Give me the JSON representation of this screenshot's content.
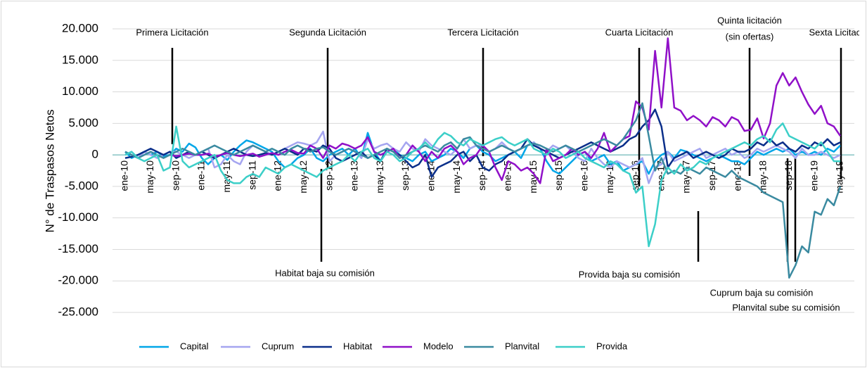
{
  "chart_data": {
    "type": "line",
    "y_label": "N° de Traspasos Netos",
    "ylim": [
      -25000,
      20000
    ],
    "yticks": [
      {
        "value": 20000,
        "label": "20.000"
      },
      {
        "value": 15000,
        "label": "15.000"
      },
      {
        "value": 10000,
        "label": "10.000"
      },
      {
        "value": 5000,
        "label": "5.000"
      },
      0,
      {
        "value": -5000,
        "label": "-5.000"
      },
      {
        "value": -10000,
        "label": "-10.000"
      },
      {
        "value": -15000,
        "label": "-15.000"
      },
      {
        "value": -20000,
        "label": "-20.000"
      },
      {
        "value": -25000,
        "label": "-25.000"
      }
    ],
    "grid": true,
    "legend": "bottom",
    "annotations": [
      "Primera Licitación",
      "Segunda Licitación",
      "Tercera Licitación",
      "Cuarta Licitación",
      "Quinta licitación",
      "(sin ofertas)",
      "Sexta Licitación"
    ],
    "annotations_bottom": [
      "Habitat baja su comisión",
      "Provida baja su comisión",
      "Cuprum baja su comisión",
      "Planvital sube su comisión"
    ],
    "categories": [
      "ene-10",
      null,
      null,
      null,
      "may-10",
      null,
      null,
      null,
      "sep-10",
      null,
      null,
      null,
      "ene-11",
      null,
      null,
      null,
      "may-11",
      null,
      null,
      null,
      "sep-11",
      null,
      null,
      null,
      "ene-12",
      null,
      null,
      null,
      "may-12",
      null,
      null,
      null,
      "sep-12",
      null,
      null,
      null,
      "ene-13",
      null,
      null,
      null,
      "may-13",
      null,
      null,
      null,
      "sep-13",
      null,
      null,
      null,
      "ene-14",
      null,
      null,
      null,
      "may-14",
      null,
      null,
      null,
      "sep-14",
      null,
      null,
      null,
      "ene-15",
      null,
      null,
      null,
      "may-15",
      null,
      null,
      null,
      "sep-15",
      null,
      null,
      null,
      "ene-16",
      null,
      null,
      null,
      "may-16",
      null,
      null,
      null,
      "sep-16",
      null,
      null,
      null,
      "ene-17",
      null,
      null,
      null,
      "may-17",
      null,
      null,
      null,
      "sep-17",
      null,
      null,
      null,
      "ene-18",
      null,
      null,
      null,
      "may-18",
      null,
      null,
      null,
      "sep-18",
      null,
      null,
      null,
      "ene-19",
      null,
      null,
      null,
      "may-19"
    ],
    "series": [
      {
        "name": "Capital",
        "color": "#00A6E8",
        "values": [
          500,
          -500,
          0,
          500,
          0,
          500,
          -200,
          0,
          1000,
          500,
          1800,
          1200,
          -500,
          -1500,
          -500,
          0,
          -800,
          500,
          1500,
          2300,
          2000,
          1500,
          1000,
          500,
          -1000,
          -2000,
          -1500,
          -500,
          0,
          1000,
          -500,
          -1000,
          0,
          500,
          1000,
          0,
          1000,
          -500,
          3500,
          500,
          -1000,
          500,
          1000,
          0,
          -500,
          -1000,
          0,
          500,
          -1000,
          -500,
          0,
          1000,
          500,
          -500,
          1000,
          1500,
          500,
          0,
          -1000,
          -500,
          0,
          500,
          -500,
          1500,
          2000,
          1000,
          -1000,
          -2500,
          -3000,
          -2000,
          -1000,
          0,
          500,
          -1000,
          -500,
          0,
          -1500,
          -1000,
          -2500,
          -2000,
          -1500,
          -1000,
          -3000,
          -1000,
          0,
          500,
          -500,
          800,
          500,
          0,
          -500,
          -1000,
          -500,
          0,
          -500,
          -1000,
          -1000,
          -1500,
          -500,
          500,
          0,
          500,
          1000,
          500,
          1000,
          0,
          500,
          0,
          500,
          0,
          1000,
          500,
          1500
        ]
      },
      {
        "name": "Cuprum",
        "color": "#A5A5F0",
        "values": [
          0,
          500,
          -500,
          500,
          0,
          -500,
          0,
          500,
          500,
          0,
          -500,
          0,
          500,
          1000,
          -2000,
          -1500,
          0,
          -1000,
          -1500,
          500,
          1500,
          1000,
          500,
          0,
          500,
          1000,
          1500,
          2000,
          1800,
          1500,
          2000,
          3700,
          -1000,
          0,
          500,
          1000,
          500,
          -500,
          2500,
          1000,
          1500,
          1800,
          1000,
          500,
          2000,
          1000,
          500,
          2500,
          1500,
          1000,
          500,
          0,
          1000,
          2500,
          1000,
          1500,
          1500,
          500,
          1000,
          2000,
          1000,
          500,
          1000,
          1500,
          2000,
          1000,
          500,
          1500,
          1000,
          1500,
          500,
          -500,
          -1000,
          1000,
          -500,
          -1500,
          -2000,
          -1000,
          -1500,
          -2000,
          -1500,
          -500,
          -4500,
          -2000,
          -1500,
          500,
          -1000,
          -500,
          0,
          500,
          1000,
          -500,
          0,
          500,
          1000,
          0,
          500,
          -500,
          0,
          1000,
          500,
          1000,
          1500,
          1000,
          500,
          -500,
          1000,
          0,
          0,
          500,
          0,
          -500,
          0
        ]
      },
      {
        "name": "Habitat",
        "color": "#0B2F8A",
        "values": [
          -500,
          -300,
          0,
          500,
          1000,
          500,
          0,
          500,
          -500,
          0,
          500,
          0,
          500,
          0,
          -500,
          0,
          500,
          1000,
          500,
          0,
          -200,
          0,
          300,
          0,
          500,
          1000,
          500,
          0,
          1000,
          800,
          500,
          1500,
          1000,
          -500,
          -1000,
          -500,
          0,
          500,
          -500,
          0,
          -1000,
          1000,
          500,
          0,
          -1000,
          -2000,
          -1500,
          0,
          -3500,
          -2000,
          -1500,
          -1000,
          0,
          500,
          -1000,
          0,
          -2000,
          -2500,
          -1500,
          -1000,
          0,
          500,
          1000,
          2500,
          1500,
          1000,
          500,
          0,
          -500,
          0,
          500,
          1000,
          1500,
          2000,
          1500,
          1000,
          500,
          1000,
          1500,
          2500,
          3000,
          4500,
          5500,
          7200,
          4500,
          -2000,
          -500,
          0,
          500,
          -500,
          0,
          500,
          0,
          -500,
          0,
          1000,
          500,
          500,
          1000,
          2000,
          1500,
          2500,
          1500,
          2000,
          1000,
          500,
          1500,
          1000,
          2000,
          1500,
          2500,
          1500,
          2000
        ]
      },
      {
        "name": "Modelo",
        "color": "#9010C8",
        "values": [
          null,
          null,
          null,
          null,
          null,
          null,
          null,
          0,
          -200,
          0,
          200,
          0,
          0,
          200,
          -300,
          0,
          300,
          0,
          -200,
          0,
          200,
          -300,
          0,
          300,
          0,
          500,
          800,
          300,
          200,
          1500,
          1000,
          -500,
          1500,
          1000,
          1800,
          1500,
          1000,
          1500,
          2800,
          500,
          0,
          500,
          1000,
          -500,
          0,
          1500,
          500,
          -1000,
          500,
          -500,
          1000,
          1500,
          500,
          -1500,
          -500,
          0,
          1500,
          500,
          -2000,
          -4000,
          -1000,
          -1500,
          -2500,
          -2000,
          -3000,
          -4500,
          1000,
          -1000,
          -500,
          0,
          1000,
          0,
          500,
          -500,
          1000,
          3500,
          500,
          1500,
          2500,
          3000,
          8500,
          7500,
          4000,
          16500,
          7500,
          18500,
          7500,
          7000,
          5500,
          6200,
          5500,
          4500,
          6000,
          5500,
          4500,
          6000,
          5500,
          3800,
          4000,
          5800,
          2600,
          5000,
          11000,
          13000,
          11000,
          12300,
          10000,
          8000,
          6500,
          7800,
          5000,
          4500,
          3000
        ]
      },
      {
        "name": "Planvital",
        "color": "#3A8AA0",
        "values": [
          500,
          0,
          -500,
          0,
          500,
          0,
          -500,
          0,
          500,
          1000,
          500,
          0,
          500,
          1000,
          1500,
          1000,
          500,
          0,
          500,
          1000,
          1500,
          1000,
          500,
          1000,
          500,
          0,
          1000,
          1500,
          1000,
          500,
          1000,
          1200,
          500,
          0,
          500,
          1000,
          500,
          0,
          -500,
          0,
          500,
          1000,
          500,
          -500,
          0,
          500,
          1000,
          1500,
          1000,
          500,
          1500,
          2000,
          1000,
          2500,
          2800,
          1500,
          1000,
          500,
          1000,
          1500,
          1000,
          500,
          1000,
          1500,
          1800,
          1500,
          1000,
          500,
          1000,
          1500,
          1000,
          500,
          1000,
          1500,
          2000,
          2500,
          2000,
          1500,
          2500,
          4000,
          5500,
          8200,
          3000,
          -2500,
          -500,
          -3000,
          -2500,
          -3000,
          -2000,
          -2500,
          -3000,
          -2000,
          -2500,
          -3000,
          -3500,
          -2500,
          -3500,
          -4000,
          -4500,
          -5000,
          -6000,
          -6500,
          -7000,
          -7500,
          -19500,
          -17500,
          -14500,
          -15500,
          -9000,
          -9500,
          -7000,
          -8000,
          -5000
        ]
      },
      {
        "name": "Provida",
        "color": "#3CCFC8",
        "values": [
          0,
          500,
          -500,
          -1000,
          -500,
          0,
          -2500,
          -2000,
          4500,
          -1000,
          -2000,
          -1500,
          -1000,
          -500,
          0,
          -2500,
          -4000,
          -4500,
          -4500,
          -3500,
          -3000,
          -3500,
          -2000,
          -2500,
          -3000,
          -2000,
          -1500,
          -2000,
          -2500,
          -3000,
          -3500,
          -2500,
          -2000,
          -1500,
          -1000,
          0,
          -1000,
          500,
          1000,
          -500,
          -1000,
          500,
          0,
          -1000,
          -500,
          500,
          1000,
          2000,
          1000,
          2500,
          3500,
          3000,
          2000,
          1500,
          2500,
          2000,
          1500,
          2000,
          2500,
          2800,
          2000,
          1500,
          2000,
          2500,
          1000,
          500,
          0,
          1000,
          500,
          -500,
          0,
          500,
          -500,
          -1000,
          -1500,
          -2000,
          -1000,
          -1500,
          -2500,
          -3000,
          -6000,
          -5000,
          -14500,
          -11000,
          -4000,
          -2000,
          -3000,
          -1500,
          -2500,
          -2000,
          -1000,
          -1500,
          -500,
          0,
          500,
          1000,
          1500,
          2000,
          1500,
          2500,
          3000,
          2000,
          4000,
          5000,
          3000,
          2500,
          2000,
          1500,
          1000,
          2000,
          500,
          -1000,
          -1000
        ]
      }
    ]
  }
}
